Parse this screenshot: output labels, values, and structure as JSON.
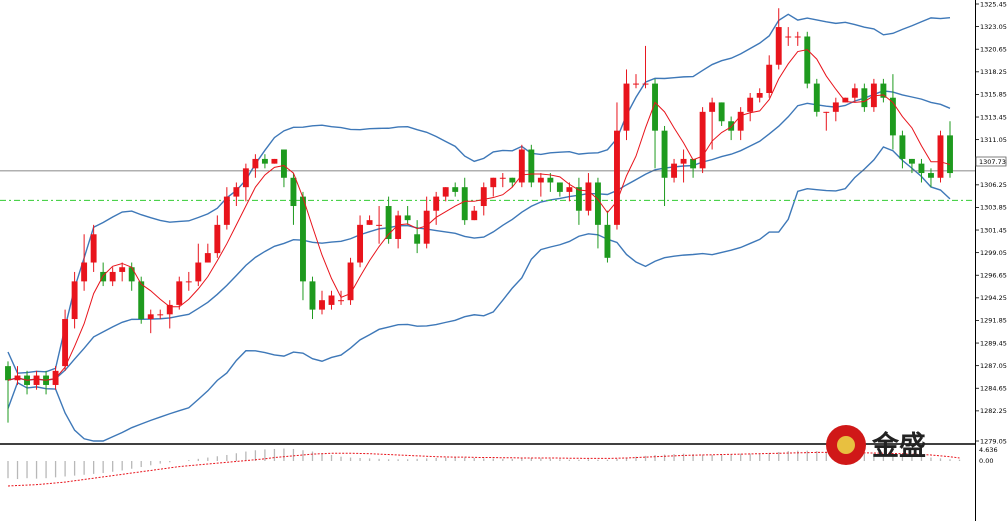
{
  "chart_data": {
    "type": "candlestick",
    "main": {
      "ylim": [
        1279.05,
        1325.45
      ],
      "y_ticks": [
        "1325.45",
        "1323.05",
        "1320.65",
        "1318.25",
        "1315.85",
        "1313.45",
        "1311.05",
        "1308.65",
        "1306.25",
        "1303.85",
        "1301.45",
        "1299.05",
        "1296.65",
        "1294.25",
        "1291.85",
        "1289.45",
        "1287.05",
        "1284.65",
        "1282.25",
        "1279.05"
      ],
      "current_price": 1307.73,
      "current_price_label": "1307.73",
      "dashed_level": 1304.6,
      "colors": {
        "up": "#e8141c",
        "down": "#1e9a1e",
        "band": "#3e78b8",
        "ma": "#e8141c",
        "price_line": "#606060",
        "dashed": "#33cc33"
      },
      "candles": [
        [
          1287,
          1285.5,
          1287.5,
          1281
        ],
        [
          1285.5,
          1286,
          1287,
          1285
        ],
        [
          1286,
          1285,
          1286.5,
          1284
        ],
        [
          1285,
          1286,
          1286.5,
          1284.5
        ],
        [
          1286,
          1285,
          1286.5,
          1284
        ],
        [
          1285,
          1286.5,
          1287,
          1284.5
        ],
        [
          1287,
          1292,
          1293,
          1286.5
        ],
        [
          1292,
          1296,
          1297,
          1291
        ],
        [
          1296,
          1298,
          1301,
          1295
        ],
        [
          1298,
          1301,
          1302,
          1297
        ],
        [
          1297,
          1296,
          1298,
          1295.5
        ],
        [
          1296,
          1297,
          1297.5,
          1295.5
        ],
        [
          1297,
          1297.5,
          1298,
          1296
        ],
        [
          1297.5,
          1296,
          1298,
          1295
        ],
        [
          1296,
          1292,
          1296.5,
          1291.5
        ],
        [
          1292,
          1292.5,
          1293,
          1290.5
        ],
        [
          1292.5,
          1292.5,
          1293,
          1292
        ],
        [
          1292.5,
          1293.5,
          1294,
          1291
        ],
        [
          1293.5,
          1296,
          1296.5,
          1293
        ],
        [
          1296,
          1296,
          1297,
          1295
        ],
        [
          1296,
          1298,
          1300,
          1295.5
        ],
        [
          1298,
          1299,
          1300,
          1298
        ],
        [
          1299,
          1302,
          1303,
          1298.5
        ],
        [
          1302,
          1305,
          1306,
          1301.5
        ],
        [
          1305,
          1306,
          1306.5,
          1304
        ],
        [
          1306,
          1308,
          1308.5,
          1304.5
        ],
        [
          1308,
          1309,
          1309.5,
          1307
        ],
        [
          1309,
          1308.5,
          1309.5,
          1308
        ],
        [
          1308.5,
          1309,
          1309,
          1308.5
        ],
        [
          1310,
          1307,
          1310,
          1306
        ],
        [
          1307,
          1304,
          1307.5,
          1302
        ],
        [
          1305,
          1296,
          1305.5,
          1294
        ],
        [
          1296,
          1293,
          1296.5,
          1292
        ],
        [
          1293,
          1294,
          1295,
          1292.5
        ],
        [
          1293.5,
          1294.5,
          1295,
          1293
        ],
        [
          1294,
          1294,
          1295,
          1293.5
        ],
        [
          1294,
          1298,
          1298.5,
          1293.5
        ],
        [
          1298,
          1302,
          1303,
          1297.5
        ],
        [
          1302,
          1302.5,
          1303,
          1302
        ],
        [
          1302,
          1302,
          1304,
          1300
        ],
        [
          1304,
          1300.5,
          1305,
          1300
        ],
        [
          1300.5,
          1303,
          1303.5,
          1299.5
        ],
        [
          1303,
          1302.5,
          1304,
          1302
        ],
        [
          1301,
          1300,
          1302.5,
          1299
        ],
        [
          1300,
          1303.5,
          1305,
          1299.5
        ],
        [
          1303.5,
          1305,
          1305.5,
          1302
        ],
        [
          1305,
          1306,
          1306,
          1304.5
        ],
        [
          1306,
          1305.5,
          1306.5,
          1305
        ],
        [
          1306,
          1302.5,
          1307,
          1302
        ],
        [
          1302.5,
          1303.5,
          1304,
          1302.5
        ],
        [
          1304,
          1306,
          1306.5,
          1303
        ],
        [
          1306,
          1307,
          1307,
          1305
        ],
        [
          1307,
          1307,
          1307.5,
          1306
        ],
        [
          1307,
          1306.5,
          1307,
          1306
        ],
        [
          1306.5,
          1310,
          1310.5,
          1306
        ],
        [
          1310,
          1306.5,
          1310.5,
          1306
        ],
        [
          1306.5,
          1307,
          1307.5,
          1305
        ],
        [
          1307,
          1306.5,
          1307.5,
          1305.5
        ],
        [
          1306.5,
          1305.5,
          1306.5,
          1305
        ],
        [
          1305.5,
          1306,
          1306.5,
          1304.5
        ],
        [
          1306,
          1303.5,
          1307,
          1302
        ],
        [
          1303.5,
          1306.5,
          1307.5,
          1303
        ],
        [
          1306.5,
          1302,
          1307,
          1299.5
        ],
        [
          1302,
          1298.5,
          1303.5,
          1298
        ],
        [
          1302,
          1312,
          1315,
          1301.5
        ],
        [
          1312,
          1317,
          1318.5,
          1311
        ],
        [
          1317,
          1317,
          1318,
          1316.5
        ],
        [
          1317,
          1317,
          1321,
          1316.5
        ],
        [
          1317,
          1312,
          1317.5,
          1308
        ],
        [
          1312,
          1307,
          1312.5,
          1304
        ],
        [
          1307,
          1308.5,
          1309,
          1306.5
        ],
        [
          1308.5,
          1309,
          1310,
          1306.5
        ],
        [
          1309,
          1308,
          1309,
          1307
        ],
        [
          1308,
          1314,
          1314.5,
          1307.5
        ],
        [
          1314,
          1315,
          1315.5,
          1310
        ],
        [
          1315,
          1313,
          1315,
          1312.5
        ],
        [
          1313,
          1312,
          1313.5,
          1311
        ],
        [
          1312,
          1314,
          1314.5,
          1311
        ],
        [
          1314,
          1315.5,
          1316,
          1313
        ],
        [
          1315.5,
          1316,
          1316.5,
          1315
        ],
        [
          1316,
          1319,
          1320,
          1315.5
        ],
        [
          1319,
          1323,
          1325,
          1318.5
        ],
        [
          1322,
          1322,
          1323,
          1321
        ],
        [
          1322,
          1322,
          1322.5,
          1321
        ],
        [
          1322,
          1317,
          1322.5,
          1316.5
        ],
        [
          1317,
          1314,
          1317.5,
          1313.5
        ],
        [
          1314,
          1314,
          1314,
          1312
        ],
        [
          1314,
          1315,
          1315.5,
          1313
        ],
        [
          1315,
          1315.5,
          1315.5,
          1315
        ],
        [
          1315.5,
          1316.5,
          1317,
          1315
        ],
        [
          1316.5,
          1314.5,
          1317,
          1314
        ],
        [
          1314.5,
          1317,
          1317.5,
          1314
        ],
        [
          1317,
          1315.5,
          1317.5,
          1315
        ],
        [
          1315.5,
          1311.5,
          1318,
          1310
        ],
        [
          1311.5,
          1309,
          1312,
          1308
        ],
        [
          1309,
          1308.5,
          1309,
          1307.5
        ],
        [
          1308.5,
          1307.5,
          1309,
          1306.5
        ],
        [
          1307.5,
          1307,
          1308,
          1306
        ],
        [
          1307,
          1311.5,
          1312,
          1306.5
        ],
        [
          1311.5,
          1307.5,
          1313,
          1307
        ]
      ]
    },
    "sub": {
      "y_ticks": [
        "4.636",
        "0.00"
      ],
      "hist": [
        -4,
        -4.2,
        -4,
        -4.1,
        -4,
        -3.8,
        -3.6,
        -3.4,
        -3.2,
        -3,
        -2.8,
        -2.5,
        -2.2,
        -1.8,
        -1.4,
        -1,
        -0.6,
        -0.3,
        0,
        0.2,
        0.5,
        0.8,
        1.1,
        1.4,
        1.8,
        2.2,
        2.5,
        2.7,
        2.8,
        2.9,
        2.8,
        2.5,
        2.2,
        1.8,
        1.4,
        1,
        0.8,
        0.7,
        0.6,
        0.5,
        0.4,
        0.4,
        0.4,
        0.5,
        0.6,
        0.7,
        0.8,
        0.9,
        0.8,
        0.7,
        0.6,
        0.6,
        0.5,
        0.5,
        0.6,
        0.7,
        0.6,
        0.5,
        0.4,
        0.3,
        0.3,
        0.4,
        0.3,
        0.3,
        0.5,
        0.8,
        1,
        1.2,
        1.4,
        1.5,
        1.6,
        1.7,
        1.6,
        1.5,
        1.4,
        1.5,
        1.6,
        1.7,
        1.7,
        1.8,
        1.9,
        2.1,
        2.3,
        2.4,
        2.4,
        2.3,
        2.2,
        2.1,
        2,
        1.9,
        1.8,
        1.8,
        1.7,
        1.6,
        1.4,
        1.2,
        1,
        0.8,
        0.6,
        0.4,
        0.3
      ],
      "signal": [
        -5.8,
        -5.7,
        -5.6,
        -5.5,
        -5.3,
        -5.1,
        -4.9,
        -4.6,
        -4.3,
        -4,
        -3.7,
        -3.4,
        -3.1,
        -2.8,
        -2.5,
        -2.2,
        -1.9,
        -1.6,
        -1.3,
        -1.1,
        -0.9,
        -0.7,
        -0.5,
        -0.3,
        -0.1,
        0.1,
        0.3,
        0.5,
        0.8,
        1,
        1.2,
        1.4,
        1.6,
        1.7,
        1.8,
        1.8,
        1.8,
        1.75,
        1.7,
        1.6,
        1.5,
        1.4,
        1.3,
        1.2,
        1.1,
        1,
        0.95,
        0.9,
        0.9,
        0.85,
        0.8,
        0.8,
        0.75,
        0.75,
        0.7,
        0.7,
        0.7,
        0.7,
        0.68,
        0.65,
        0.63,
        0.6,
        0.6,
        0.6,
        0.65,
        0.7,
        0.8,
        0.9,
        1,
        1.1,
        1.2,
        1.3,
        1.35,
        1.4,
        1.45,
        1.5,
        1.55,
        1.6,
        1.65,
        1.7,
        1.75,
        1.8,
        1.85,
        1.9,
        1.95,
        2,
        2,
        2,
        1.98,
        1.95,
        1.9,
        1.85,
        1.8,
        1.75,
        1.7,
        1.6,
        1.5,
        1.4,
        1.2,
        1,
        0.7
      ],
      "colors": {
        "hist": "#b8b8b8",
        "signal": "#e8141c"
      }
    }
  },
  "logo": {
    "text": "金盛",
    "colors": {
      "ring": "#d01818",
      "inner": "#e8c040"
    }
  }
}
